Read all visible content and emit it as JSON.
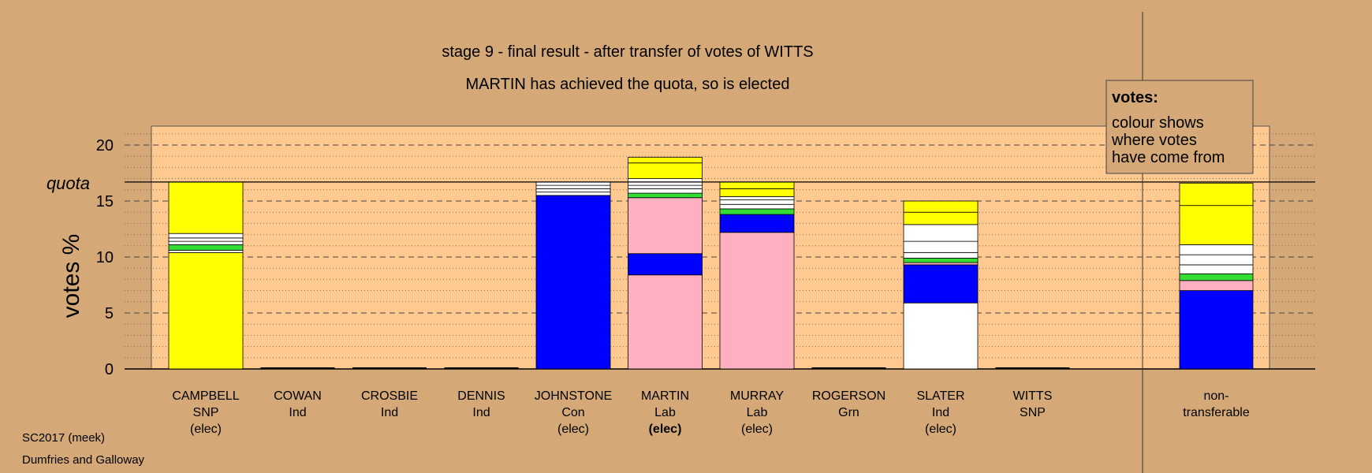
{
  "chart_data": {
    "type": "bar",
    "title": "stage 9 - final result - after transfer of votes of WITTS",
    "subtitle": "MARTIN has achieved the quota, so is elected",
    "ylabel": "votes %",
    "ylim": [
      0,
      21.5
    ],
    "yticks": [
      0,
      5,
      10,
      15,
      20
    ],
    "quota_label": "quota",
    "quota": 16.7,
    "legend": {
      "heading": "votes:",
      "lines": [
        "colour shows",
        "where votes",
        "have come from"
      ]
    },
    "colors": {
      "SNP": "#ffff00",
      "Con": "#0000ff",
      "Lab": "#ffb0c0",
      "Grn": "#33dd33",
      "Ind": "#ffffff",
      "background": "#d4a977",
      "plot_area": "#ffc990"
    },
    "categories": [
      {
        "name": "CAMPBELL",
        "party": "SNP",
        "status": "(elec)",
        "bold": false,
        "segments": [
          {
            "color": "SNP",
            "value": 10.4
          },
          {
            "color": "Ind",
            "value": 0.2
          },
          {
            "color": "Grn",
            "value": 0.5
          },
          {
            "color": "Ind",
            "value": 0.3
          },
          {
            "color": "Ind",
            "value": 0.3
          },
          {
            "color": "Ind",
            "value": 0.4
          },
          {
            "color": "SNP",
            "value": 4.6
          }
        ]
      },
      {
        "name": "COWAN",
        "party": "Ind",
        "status": "",
        "bold": false,
        "segments": []
      },
      {
        "name": "CROSBIE",
        "party": "Ind",
        "status": "",
        "bold": false,
        "segments": []
      },
      {
        "name": "DENNIS",
        "party": "Ind",
        "status": "",
        "bold": false,
        "segments": []
      },
      {
        "name": "JOHNSTONE",
        "party": "Con",
        "status": "(elec)",
        "bold": false,
        "segments": [
          {
            "color": "Con",
            "value": 15.5
          },
          {
            "color": "Ind",
            "value": 0.3
          },
          {
            "color": "Ind",
            "value": 0.3
          },
          {
            "color": "Ind",
            "value": 0.3
          },
          {
            "color": "Ind",
            "value": 0.3
          }
        ]
      },
      {
        "name": "MARTIN",
        "party": "Lab",
        "status": "(elec)",
        "bold": true,
        "segments": [
          {
            "color": "Lab",
            "value": 8.4
          },
          {
            "color": "Con",
            "value": 1.9
          },
          {
            "color": "Lab",
            "value": 5.0
          },
          {
            "color": "Grn",
            "value": 0.4
          },
          {
            "color": "Ind",
            "value": 0.4
          },
          {
            "color": "Ind",
            "value": 0.3
          },
          {
            "color": "Ind",
            "value": 0.3
          },
          {
            "color": "Ind",
            "value": 0.3
          },
          {
            "color": "SNP",
            "value": 1.4
          },
          {
            "color": "SNP",
            "value": 0.5
          }
        ]
      },
      {
        "name": "MURRAY",
        "party": "Lab",
        "status": "(elec)",
        "bold": false,
        "segments": [
          {
            "color": "Lab",
            "value": 12.2
          },
          {
            "color": "Con",
            "value": 1.6
          },
          {
            "color": "Grn",
            "value": 0.5
          },
          {
            "color": "Ind",
            "value": 0.4
          },
          {
            "color": "Ind",
            "value": 0.4
          },
          {
            "color": "Ind",
            "value": 0.3
          },
          {
            "color": "SNP",
            "value": 0.7
          },
          {
            "color": "SNP",
            "value": 0.6
          }
        ]
      },
      {
        "name": "ROGERSON",
        "party": "Grn",
        "status": "",
        "bold": false,
        "segments": []
      },
      {
        "name": "SLATER",
        "party": "Ind",
        "status": "(elec)",
        "bold": false,
        "segments": [
          {
            "color": "Ind",
            "value": 5.9
          },
          {
            "color": "Con",
            "value": 3.4
          },
          {
            "color": "Lab",
            "value": 0.2
          },
          {
            "color": "Grn",
            "value": 0.4
          },
          {
            "color": "Ind",
            "value": 0.5
          },
          {
            "color": "Ind",
            "value": 1.0
          },
          {
            "color": "Ind",
            "value": 1.5
          },
          {
            "color": "SNP",
            "value": 1.1
          },
          {
            "color": "SNP",
            "value": 1.0
          }
        ]
      },
      {
        "name": "WITTS",
        "party": "SNP",
        "status": "",
        "bold": false,
        "segments": []
      }
    ],
    "nontransferable": {
      "label_line1": "non-",
      "label_line2": "transferable",
      "segments": [
        {
          "color": "Con",
          "value": 7.0
        },
        {
          "color": "Lab",
          "value": 0.9
        },
        {
          "color": "Grn",
          "value": 0.6
        },
        {
          "color": "Ind",
          "value": 0.8
        },
        {
          "color": "Ind",
          "value": 0.9
        },
        {
          "color": "Ind",
          "value": 0.9
        },
        {
          "color": "SNP",
          "value": 3.5
        },
        {
          "color": "SNP",
          "value": 2.0
        }
      ]
    },
    "footer": [
      "SC2017 (meek)",
      "Dumfries and Galloway"
    ]
  }
}
